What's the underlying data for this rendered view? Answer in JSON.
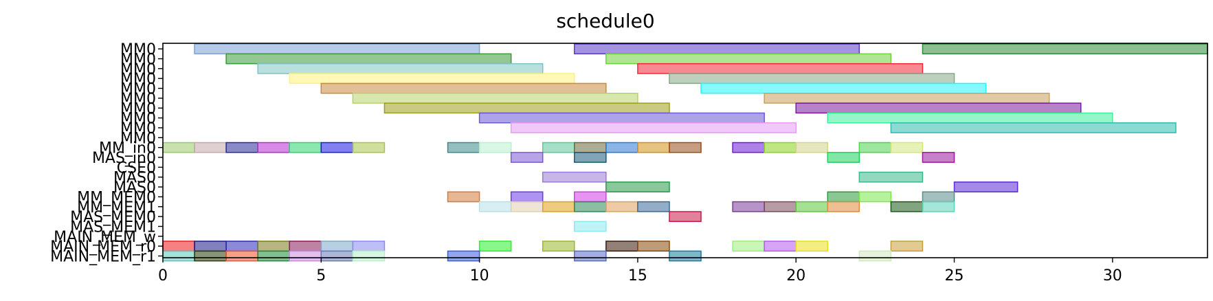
{
  "chart_data": {
    "type": "gantt",
    "title": "schedule0",
    "xlim": [
      0,
      33
    ],
    "x_ticks": [
      0,
      5,
      10,
      15,
      20,
      25,
      30
    ],
    "grid": false,
    "rows": [
      "MM0",
      "MM0",
      "MM0",
      "MM0",
      "MM0",
      "MM0",
      "MM0",
      "MM0",
      "MM0",
      "MM0",
      "MM_in0",
      "MAS_in0",
      "CSE0",
      "MAS0",
      "MAS0",
      "MM_MEM0",
      "MM_MEM1",
      "MAS_MEM0",
      "MAS_MEM1",
      "MAIN_MEM_w",
      "MAIN_MEM_r0",
      "MAIN_MEM_r1"
    ],
    "bars": [
      {
        "row": 0,
        "start": 1,
        "end": 10,
        "color": "#7ba1d6"
      },
      {
        "row": 0,
        "start": 13,
        "end": 22,
        "color": "#5a3bc4"
      },
      {
        "row": 0,
        "start": 24,
        "end": 33,
        "color": "#2e8b3a"
      },
      {
        "row": 1,
        "start": 2,
        "end": 11,
        "color": "#3a9a3a"
      },
      {
        "row": 1,
        "start": 14,
        "end": 23,
        "color": "#6fd03b"
      },
      {
        "row": 2,
        "start": 3,
        "end": 12,
        "color": "#7fc4c4"
      },
      {
        "row": 2,
        "start": 15,
        "end": 24,
        "color": "#f2283a"
      },
      {
        "row": 3,
        "start": 4,
        "end": 13,
        "color": "#fff27a"
      },
      {
        "row": 3,
        "start": 16,
        "end": 25,
        "color": "#86a886"
      },
      {
        "row": 4,
        "start": 5,
        "end": 14,
        "color": "#c88a42"
      },
      {
        "row": 4,
        "start": 17,
        "end": 26,
        "color": "#22f5f5"
      },
      {
        "row": 5,
        "start": 6,
        "end": 15,
        "color": "#b6d46a"
      },
      {
        "row": 5,
        "start": 19,
        "end": 28,
        "color": "#c9a05c"
      },
      {
        "row": 6,
        "start": 7,
        "end": 16,
        "color": "#9e9e1c"
      },
      {
        "row": 6,
        "start": 20,
        "end": 29,
        "color": "#7a1c9a"
      },
      {
        "row": 7,
        "start": 10,
        "end": 19,
        "color": "#6a5ad4"
      },
      {
        "row": 7,
        "start": 21,
        "end": 30,
        "color": "#3ef09a"
      },
      {
        "row": 8,
        "start": 11,
        "end": 20,
        "color": "#e89af5"
      },
      {
        "row": 8,
        "start": 23,
        "end": 32,
        "color": "#2ebcb0"
      },
      {
        "row": 10,
        "start": 0,
        "end": 1,
        "color": "#9acb6a"
      },
      {
        "row": 10,
        "start": 1,
        "end": 2,
        "color": "#c4a8a8"
      },
      {
        "row": 10,
        "start": 2,
        "end": 3,
        "color": "#2a2a9a"
      },
      {
        "row": 10,
        "start": 3,
        "end": 4,
        "color": "#b82ad4"
      },
      {
        "row": 10,
        "start": 4,
        "end": 5,
        "color": "#2ad46a"
      },
      {
        "row": 10,
        "start": 5,
        "end": 6,
        "color": "#1a1ae8"
      },
      {
        "row": 10,
        "start": 6,
        "end": 7,
        "color": "#a8c44a"
      },
      {
        "row": 10,
        "start": 9,
        "end": 10,
        "color": "#3a8a8a"
      },
      {
        "row": 10,
        "start": 10,
        "end": 11,
        "color": "#b8f0d0"
      },
      {
        "row": 10,
        "start": 12,
        "end": 13,
        "color": "#5ac89a"
      },
      {
        "row": 10,
        "start": 13,
        "end": 14,
        "color": "#6a6a3a"
      },
      {
        "row": 10,
        "start": 14,
        "end": 15,
        "color": "#2a7ad4"
      },
      {
        "row": 10,
        "start": 15,
        "end": 16,
        "color": "#d4901a"
      },
      {
        "row": 10,
        "start": 16,
        "end": 17,
        "color": "#9a4a1a"
      },
      {
        "row": 10,
        "start": 18,
        "end": 19,
        "color": "#6a1ad4"
      },
      {
        "row": 10,
        "start": 19,
        "end": 20,
        "color": "#8ad41a"
      },
      {
        "row": 10,
        "start": 20,
        "end": 21,
        "color": "#d4d48a"
      },
      {
        "row": 10,
        "start": 22,
        "end": 23,
        "color": "#4ad44a"
      },
      {
        "row": 10,
        "start": 23,
        "end": 24,
        "color": "#d4e87a"
      },
      {
        "row": 11,
        "start": 11,
        "end": 12,
        "color": "#7a5ad4"
      },
      {
        "row": 11,
        "start": 13,
        "end": 14,
        "color": "#1a5a7a"
      },
      {
        "row": 11,
        "start": 21,
        "end": 22,
        "color": "#1ad45a"
      },
      {
        "row": 11,
        "start": 24,
        "end": 25,
        "color": "#9a1a9a"
      },
      {
        "row": 13,
        "start": 12,
        "end": 14,
        "color": "#9a7ad4"
      },
      {
        "row": 13,
        "start": 22,
        "end": 24,
        "color": "#3ab88a"
      },
      {
        "row": 14,
        "start": 14,
        "end": 16,
        "color": "#2a9a4a"
      },
      {
        "row": 14,
        "start": 25,
        "end": 27,
        "color": "#5a2ad4"
      },
      {
        "row": 15,
        "start": 9,
        "end": 10,
        "color": "#d47a3a"
      },
      {
        "row": 15,
        "start": 11,
        "end": 12,
        "color": "#6a3ae8"
      },
      {
        "row": 15,
        "start": 13,
        "end": 14,
        "color": "#d43ae8"
      },
      {
        "row": 15,
        "start": 21,
        "end": 22,
        "color": "#2a9a3a"
      },
      {
        "row": 15,
        "start": 22,
        "end": 23,
        "color": "#7ae84a"
      },
      {
        "row": 15,
        "start": 24,
        "end": 25,
        "color": "#5a8a8a"
      },
      {
        "row": 16,
        "start": 10,
        "end": 11,
        "color": "#b8e0e8"
      },
      {
        "row": 16,
        "start": 11,
        "end": 12,
        "color": "#e0d0b0"
      },
      {
        "row": 16,
        "start": 12,
        "end": 13,
        "color": "#e0a01a"
      },
      {
        "row": 16,
        "start": 13,
        "end": 14,
        "color": "#2a8a5a"
      },
      {
        "row": 16,
        "start": 14,
        "end": 15,
        "color": "#e0a05a"
      },
      {
        "row": 16,
        "start": 15,
        "end": 16,
        "color": "#3a6a9a"
      },
      {
        "row": 16,
        "start": 18,
        "end": 19,
        "color": "#7a3a9a"
      },
      {
        "row": 16,
        "start": 19,
        "end": 20,
        "color": "#7a4a5a"
      },
      {
        "row": 16,
        "start": 20,
        "end": 21,
        "color": "#5ac83a"
      },
      {
        "row": 16,
        "start": 21,
        "end": 22,
        "color": "#e08a3a"
      },
      {
        "row": 16,
        "start": 23,
        "end": 24,
        "color": "#1a5a1a"
      },
      {
        "row": 16,
        "start": 24,
        "end": 25,
        "color": "#5ad4b8"
      },
      {
        "row": 17,
        "start": 16,
        "end": 17,
        "color": "#c81a4a"
      },
      {
        "row": 18,
        "start": 13,
        "end": 14,
        "color": "#8aeaf0"
      },
      {
        "row": 20,
        "start": 0,
        "end": 1,
        "color": "#f01a1a"
      },
      {
        "row": 20,
        "start": 1,
        "end": 2,
        "color": "#1a1a8a"
      },
      {
        "row": 20,
        "start": 2,
        "end": 3,
        "color": "#2a2ab8"
      },
      {
        "row": 20,
        "start": 3,
        "end": 4,
        "color": "#7a7a1a"
      },
      {
        "row": 20,
        "start": 4,
        "end": 5,
        "color": "#8a1a5a"
      },
      {
        "row": 20,
        "start": 5,
        "end": 6,
        "color": "#7aaac8"
      },
      {
        "row": 20,
        "start": 6,
        "end": 7,
        "color": "#8a8af0"
      },
      {
        "row": 20,
        "start": 10,
        "end": 11,
        "color": "#2af02a"
      },
      {
        "row": 20,
        "start": 12,
        "end": 13,
        "color": "#9ab82a"
      },
      {
        "row": 20,
        "start": 14,
        "end": 15,
        "color": "#3a1a0a"
      },
      {
        "row": 20,
        "start": 15,
        "end": 16,
        "color": "#8a4a0a"
      },
      {
        "row": 20,
        "start": 18,
        "end": 19,
        "color": "#9af07a"
      },
      {
        "row": 20,
        "start": 19,
        "end": 20,
        "color": "#b85af0"
      },
      {
        "row": 20,
        "start": 20,
        "end": 21,
        "color": "#e8e01a"
      },
      {
        "row": 20,
        "start": 23,
        "end": 24,
        "color": "#c8a03a"
      },
      {
        "row": 21,
        "start": 0,
        "end": 1,
        "color": "#5ac8b8"
      },
      {
        "row": 21,
        "start": 1,
        "end": 2,
        "color": "#2a3a0a"
      },
      {
        "row": 21,
        "start": 2,
        "end": 3,
        "color": "#f0502a"
      },
      {
        "row": 21,
        "start": 3,
        "end": 4,
        "color": "#1a8a3a"
      },
      {
        "row": 21,
        "start": 4,
        "end": 5,
        "color": "#c88ae0"
      },
      {
        "row": 21,
        "start": 5,
        "end": 6,
        "color": "#6a7ab8"
      },
      {
        "row": 21,
        "start": 6,
        "end": 7,
        "color": "#b8f0c8"
      },
      {
        "row": 21,
        "start": 9,
        "end": 10,
        "color": "#3a5ae8"
      },
      {
        "row": 21,
        "start": 13,
        "end": 14,
        "color": "#5a6ac8"
      },
      {
        "row": 21,
        "start": 16,
        "end": 17,
        "color": "#1a7a9a"
      },
      {
        "row": 21,
        "start": 22,
        "end": 23,
        "color": "#d0e8c0"
      }
    ]
  }
}
